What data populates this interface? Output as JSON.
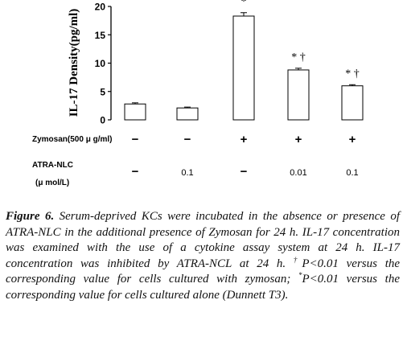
{
  "chart_data": {
    "type": "bar",
    "ylabel": "IL-17 Density(pg/ml)",
    "ylim": [
      0,
      20
    ],
    "yticks": [
      0,
      5,
      10,
      15,
      20
    ],
    "grid": false,
    "values": [
      2.8,
      2.1,
      18.3,
      8.8,
      6.0
    ],
    "errors": [
      0.2,
      0.15,
      0.6,
      0.3,
      0.2
    ],
    "annotations": [
      "",
      "",
      "*",
      "*†",
      "*†"
    ],
    "bar_fill": "#ffffff",
    "bar_stroke": "#000000",
    "rows": [
      {
        "label": "Zymosan(500 μ g/ml)",
        "values": [
          "−",
          "−",
          "+",
          "+",
          "+"
        ]
      },
      {
        "label": "ATRA-NLC",
        "sublabel": "(μ mol/L)",
        "values": [
          "−",
          "0.1",
          "−",
          "0.01",
          "0.1"
        ]
      }
    ]
  },
  "caption": {
    "figure_label": "Figure 6.",
    "part1": " Serum-deprived KCs were incubated in the absence or presence of ATRA-NLC in the additional presence of Zymosan for 24 h. IL-17 concentration was examined with the use of a cytokine assay system at 24 h. IL-17 concentration was inhibited by ATRA-NCL at 24 h. ",
    "dagger": "†",
    "part2": "P<0.01 versus the corresponding value for cells cultured with zymosan; ",
    "star": "*",
    "part3": "P<0.01 versus the corresponding value for cells cultured alone (Dunnett T3)."
  }
}
